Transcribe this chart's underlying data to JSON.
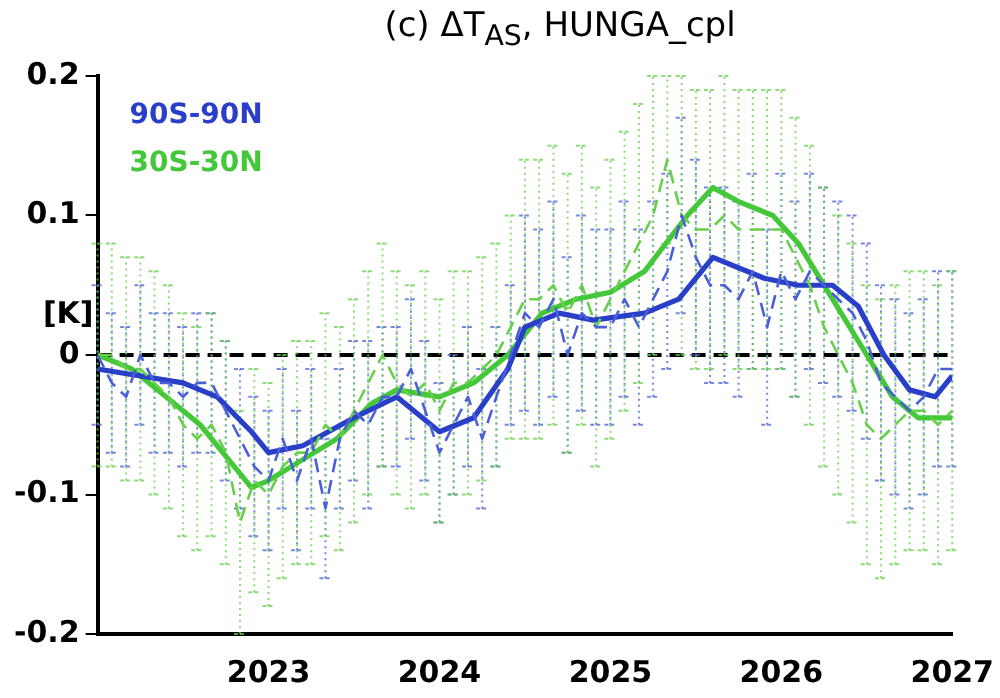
{
  "chart_data": {
    "type": "line",
    "title": "(c) ΔT$_{AS}$, HUNGA_cpl",
    "ylabel": "[K]",
    "xlim": [
      2022,
      2027
    ],
    "ylim": [
      -0.2,
      0.2
    ],
    "xticks": [
      2023,
      2024,
      2025,
      2026,
      2027
    ],
    "yticks": [
      -0.2,
      -0.1,
      0,
      0.1,
      0.2
    ],
    "grid": false,
    "legend": "top left",
    "marker": "none",
    "ref_lines": [
      {
        "axis": "y",
        "value": 0,
        "color": "#000000",
        "line_style": "dashed"
      }
    ],
    "series": [
      {
        "color": "#4a5fd8",
        "line_style": "dashed",
        "x": [
          2022,
          2022.083,
          2022.167,
          2022.25,
          2022.333,
          2022.417,
          2022.5,
          2022.583,
          2022.667,
          2022.75,
          2022.833,
          2022.917,
          2023,
          2023.083,
          2023.167,
          2023.25,
          2023.333,
          2023.417,
          2023.5,
          2023.583,
          2023.667,
          2023.75,
          2023.833,
          2023.917,
          2024,
          2024.083,
          2024.167,
          2024.25,
          2024.333,
          2024.417,
          2024.5,
          2024.583,
          2024.667,
          2024.75,
          2024.833,
          2024.917,
          2025,
          2025.083,
          2025.167,
          2025.25,
          2025.333,
          2025.417,
          2025.5,
          2025.583,
          2025.667,
          2025.75,
          2025.833,
          2025.917,
          2026,
          2026.083,
          2026.167,
          2026.25,
          2026.333,
          2026.417,
          2026.5,
          2026.583,
          2026.667,
          2026.75,
          2026.833,
          2026.917,
          2027
        ],
        "values": [
          0,
          -0.02,
          -0.03,
          0,
          -0.02,
          -0.02,
          -0.03,
          -0.02,
          -0.02,
          -0.04,
          -0.06,
          -0.08,
          -0.09,
          -0.06,
          -0.09,
          -0.06,
          -0.11,
          -0.06,
          -0.04,
          -0.05,
          -0.03,
          -0.03,
          -0.01,
          -0.04,
          -0.07,
          -0.05,
          -0.03,
          -0.06,
          -0.03,
          0,
          0.03,
          0.02,
          0.04,
          0,
          0.03,
          0.02,
          0.02,
          0.04,
          0.02,
          0.04,
          0.06,
          0.1,
          0.07,
          0.05,
          0.05,
          0.04,
          0.06,
          0.02,
          0.06,
          0.04,
          0.06,
          0.05,
          0.04,
          0.03,
          0.01,
          -0.02,
          -0.03,
          -0.04,
          -0.03,
          -0.01,
          -0.01
        ],
        "errors": [
          0.05,
          0.05,
          0.05,
          0.05,
          0.05,
          0.05,
          0.05,
          0.05,
          0.05,
          0.05,
          0.05,
          0.05,
          0.05,
          0.05,
          0.05,
          0.05,
          0.05,
          0.05,
          0.05,
          0.06,
          0.05,
          0.05,
          0.05,
          0.05,
          0.05,
          0.05,
          0.05,
          0.05,
          0.05,
          0.05,
          0.07,
          0.07,
          0.07,
          0.07,
          0.07,
          0.07,
          0.07,
          0.07,
          0.07,
          0.07,
          0.07,
          0.07,
          0.07,
          0.07,
          0.07,
          0.07,
          0.07,
          0.07,
          0.07,
          0.07,
          0.07,
          0.07,
          0.07,
          0.07,
          0.07,
          0.07,
          0.07,
          0.07,
          0.07,
          0.07,
          0.07
        ]
      },
      {
        "color": "#66d04a",
        "line_style": "dashed",
        "x": [
          2022,
          2022.083,
          2022.167,
          2022.25,
          2022.333,
          2022.417,
          2022.5,
          2022.583,
          2022.667,
          2022.75,
          2022.833,
          2022.917,
          2023,
          2023.083,
          2023.167,
          2023.25,
          2023.333,
          2023.417,
          2023.5,
          2023.583,
          2023.667,
          2023.75,
          2023.833,
          2023.917,
          2024,
          2024.083,
          2024.167,
          2024.25,
          2024.333,
          2024.417,
          2024.5,
          2024.583,
          2024.667,
          2024.75,
          2024.833,
          2024.917,
          2025,
          2025.083,
          2025.167,
          2025.25,
          2025.333,
          2025.417,
          2025.5,
          2025.583,
          2025.667,
          2025.75,
          2025.833,
          2025.917,
          2026,
          2026.083,
          2026.167,
          2026.25,
          2026.333,
          2026.417,
          2026.5,
          2026.583,
          2026.667,
          2026.75,
          2026.833,
          2026.917,
          2027
        ],
        "values": [
          0,
          0,
          -0.01,
          -0.01,
          -0.02,
          -0.03,
          -0.05,
          -0.06,
          -0.05,
          -0.07,
          -0.12,
          -0.09,
          -0.1,
          -0.08,
          -0.07,
          -0.07,
          -0.05,
          -0.06,
          -0.04,
          -0.02,
          0,
          -0.02,
          -0.03,
          -0.02,
          -0.04,
          -0.02,
          -0.02,
          -0.01,
          0,
          0.02,
          0.04,
          0.04,
          0.05,
          0.03,
          0.05,
          0.02,
          0.04,
          0.06,
          0.08,
          0.1,
          0.14,
          0.1,
          0.09,
          0.09,
          0.1,
          0.09,
          0.09,
          0.09,
          0.09,
          0.07,
          0.05,
          0.02,
          0,
          -0.02,
          -0.05,
          -0.06,
          -0.05,
          -0.04,
          -0.04,
          -0.05,
          -0.04
        ],
        "errors": [
          0.08,
          0.08,
          0.08,
          0.08,
          0.08,
          0.08,
          0.08,
          0.08,
          0.08,
          0.08,
          0.08,
          0.08,
          0.08,
          0.08,
          0.08,
          0.08,
          0.08,
          0.08,
          0.08,
          0.08,
          0.08,
          0.08,
          0.08,
          0.08,
          0.08,
          0.08,
          0.08,
          0.08,
          0.08,
          0.08,
          0.1,
          0.1,
          0.1,
          0.1,
          0.1,
          0.1,
          0.1,
          0.1,
          0.1,
          0.1,
          0.06,
          0.1,
          0.1,
          0.1,
          0.1,
          0.1,
          0.1,
          0.1,
          0.1,
          0.1,
          0.1,
          0.1,
          0.1,
          0.1,
          0.1,
          0.1,
          0.1,
          0.1,
          0.1,
          0.1,
          0.1
        ]
      },
      {
        "name": "90S-90N",
        "color": "#2a3fc8",
        "line_style": "solid",
        "x": [
          2022,
          2022.5,
          2022.7,
          2022.9,
          2023,
          2023.2,
          2023.5,
          2023.75,
          2024,
          2024.2,
          2024.4,
          2024.5,
          2024.7,
          2024.9,
          2025.2,
          2025.4,
          2025.6,
          2025.9,
          2026.1,
          2026.3,
          2026.45,
          2026.6,
          2026.75,
          2026.9,
          2027
        ],
        "values": [
          -0.01,
          -0.02,
          -0.03,
          -0.055,
          -0.07,
          -0.065,
          -0.045,
          -0.03,
          -0.055,
          -0.045,
          -0.01,
          0.02,
          0.03,
          0.025,
          0.03,
          0.04,
          0.07,
          0.055,
          0.05,
          0.05,
          0.035,
          0,
          -0.025,
          -0.03,
          -0.015
        ]
      },
      {
        "name": "30S-30N",
        "color": "#44c83a",
        "line_style": "solid",
        "x": [
          2022,
          2022.2,
          2022.4,
          2022.6,
          2022.8,
          2022.9,
          2023,
          2023.2,
          2023.4,
          2023.6,
          2023.75,
          2024,
          2024.2,
          2024.4,
          2024.6,
          2024.8,
          2025,
          2025.2,
          2025.45,
          2025.6,
          2025.75,
          2025.95,
          2026.1,
          2026.3,
          2026.5,
          2026.65,
          2026.8,
          2027
        ],
        "values": [
          0,
          -0.01,
          -0.03,
          -0.05,
          -0.08,
          -0.095,
          -0.09,
          -0.075,
          -0.06,
          -0.035,
          -0.025,
          -0.03,
          -0.02,
          0,
          0.03,
          0.04,
          0.045,
          0.06,
          0.1,
          0.12,
          0.11,
          0.1,
          0.08,
          0.04,
          0,
          -0.03,
          -0.045,
          -0.045
        ]
      }
    ]
  }
}
